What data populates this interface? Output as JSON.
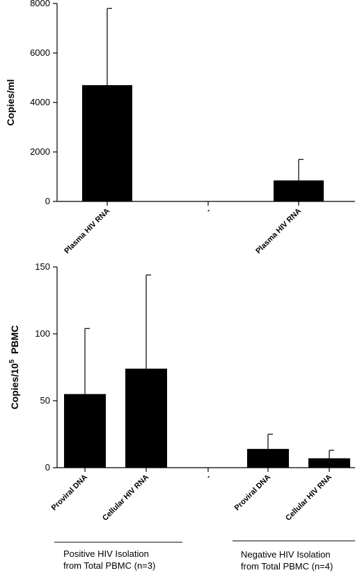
{
  "chart_data": [
    {
      "type": "bar",
      "categories": [
        "Plasma HIV RNA",
        "-",
        "Plasma HIV RNA"
      ],
      "values": [
        4700,
        0,
        850
      ],
      "errors": [
        3100,
        0,
        850
      ],
      "ylabel": "Copies/ml",
      "ylim": [
        0,
        8000
      ],
      "yticks": [
        0,
        2000,
        4000,
        6000,
        8000
      ],
      "grid": false
    },
    {
      "type": "bar",
      "categories": [
        "Proviral DNA",
        "Cellular HIV RNA",
        "-",
        "Proviral DNA",
        "Cellular HIV RNA"
      ],
      "values": [
        55,
        74,
        0,
        14,
        7
      ],
      "errors": [
        49,
        70,
        0,
        11,
        6
      ],
      "ylabel": "Copies/10⁵ PBMC",
      "ylabel_main": "Copies/10",
      "ylabel_sup": "5",
      "ylabel_tail": "  PBMC",
      "ylim": [
        0,
        150
      ],
      "yticks": [
        0,
        50,
        100,
        150
      ],
      "grid": false,
      "groups": [
        {
          "line1": "Positive HIV Isolation",
          "line2": "from Total PBMC (n=3)"
        },
        {
          "line1": "Negative HIV Isolation",
          "line2": "from Total PBMC (n=4)"
        }
      ]
    }
  ]
}
